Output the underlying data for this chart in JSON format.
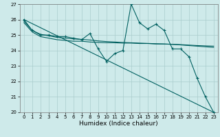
{
  "xlabel": "Humidex (Indice chaleur)",
  "x": [
    0,
    1,
    2,
    3,
    4,
    5,
    6,
    7,
    8,
    9,
    10,
    11,
    12,
    13,
    14,
    15,
    16,
    17,
    18,
    19,
    20,
    21,
    22,
    23
  ],
  "line1": [
    26.0,
    25.3,
    25.0,
    25.0,
    24.9,
    24.9,
    24.8,
    24.7,
    25.1,
    24.1,
    23.3,
    23.8,
    24.0,
    27.0,
    25.8,
    25.4,
    25.7,
    25.3,
    24.1,
    24.1,
    23.6,
    22.2,
    21.0,
    20.0
  ],
  "line2": [
    25.8,
    25.2,
    24.9,
    24.8,
    24.7,
    24.65,
    24.6,
    24.6,
    24.55,
    24.52,
    24.5,
    24.5,
    24.48,
    24.48,
    24.45,
    24.45,
    24.42,
    24.42,
    24.4,
    24.38,
    24.35,
    24.32,
    24.3,
    24.28
  ],
  "line3": [
    25.9,
    25.3,
    25.05,
    24.95,
    24.85,
    24.8,
    24.75,
    24.72,
    24.68,
    24.62,
    24.58,
    24.55,
    24.52,
    24.5,
    24.48,
    24.46,
    24.44,
    24.42,
    24.4,
    24.36,
    24.32,
    24.28,
    24.24,
    24.2
  ],
  "line4_x": [
    0,
    23
  ],
  "line4_y": [
    26.0,
    20.0
  ],
  "ylim": [
    20,
    27
  ],
  "xlim_min": -0.5,
  "xlim_max": 23.5,
  "bg_color": "#ceeaea",
  "line_color": "#006060",
  "grid_color": "#aacccc",
  "tick_fontsize": 5.0,
  "xlabel_fontsize": 6.5
}
